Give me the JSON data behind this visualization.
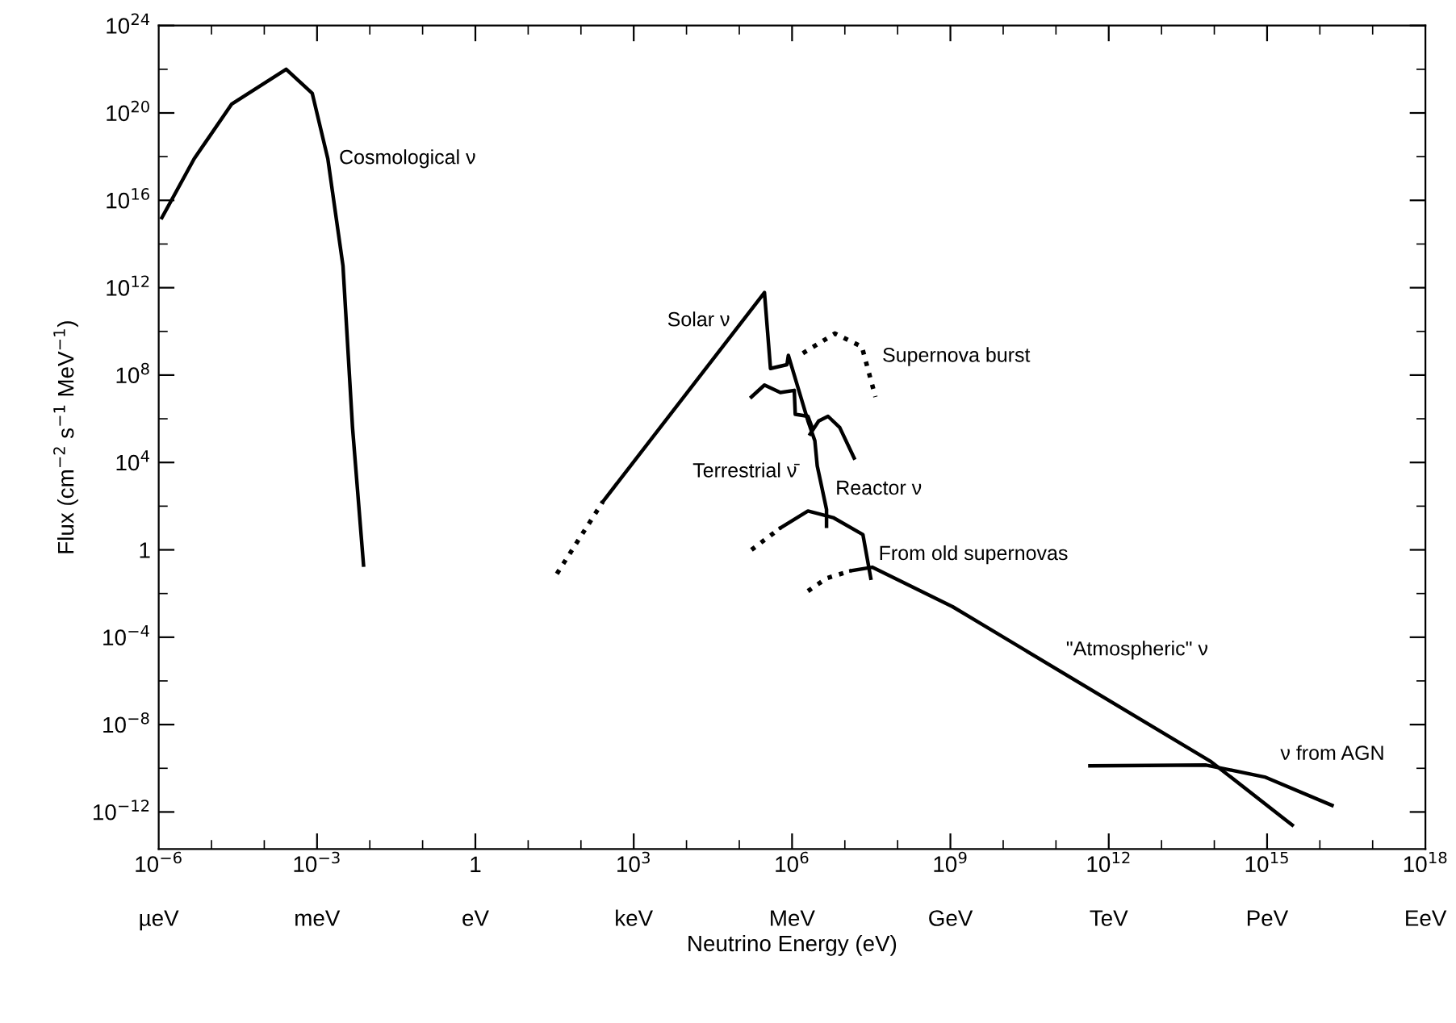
{
  "chart_data": {
    "type": "line",
    "xlabel": "Neutrino Energy (eV)",
    "ylabel": "Flux (cm$^{−2}$ s$^{−1}$ MeV$^{−1}$)",
    "log": "xy",
    "grid": false,
    "legend": false,
    "marker": "none",
    "xlim": [
      1e-06,
      1e+18
    ],
    "ylim": [
      2e-14,
      1e+24
    ],
    "xticks": [
      {
        "value": 1e-06,
        "label": "10$^{−6}$"
      },
      {
        "value": 0.001,
        "label": "10$^{−3}$"
      },
      {
        "value": 1,
        "label": "1"
      },
      {
        "value": 1000.0,
        "label": "10$^{3}$"
      },
      {
        "value": 1000000.0,
        "label": "10$^{6}$"
      },
      {
        "value": 1000000000.0,
        "label": "10$^{9}$"
      },
      {
        "value": 1000000000000.0,
        "label": "10$^{12}$"
      },
      {
        "value": 1000000000000000.0,
        "label": "10$^{15}$"
      },
      {
        "value": 1e+18,
        "label": "10$^{18}$"
      }
    ],
    "yticks": [
      {
        "value": 1e-12,
        "label": "10$^{−12}$"
      },
      {
        "value": 1e-08,
        "label": "10$^{−8}$"
      },
      {
        "value": 0.0001,
        "label": "10$^{−4}$"
      },
      {
        "value": 1,
        "label": "1"
      },
      {
        "value": 10000.0,
        "label": "10$^{4}$"
      },
      {
        "value": 100000000.0,
        "label": "10$^{8}$"
      },
      {
        "value": 1000000000000.0,
        "label": "10$^{12}$"
      },
      {
        "value": 1e+16,
        "label": "10$^{16}$"
      },
      {
        "value": 1e+20,
        "label": "10$^{20}$"
      },
      {
        "value": 1e+24,
        "label": "10$^{24}$"
      }
    ],
    "series": [
      {
        "color": "#000000",
        "line_style": "solid",
        "x": [
          1.15e-06,
          4.7e-06,
          2.4e-05,
          0.00026,
          0.00081,
          0.0016,
          0.0031,
          0.0047,
          0.0076
        ],
        "values": [
          1600000000000000.0,
          8e+17,
          2.5e+20,
          1e+22,
          8e+20,
          8e+17,
          10000000000000.0,
          400000.0,
          0.2
        ]
      },
      {
        "color": "#000000",
        "line_style": "dotted",
        "x": [
          35,
          260
        ],
        "values": [
          0.08,
          160
        ]
      },
      {
        "color": "#000000",
        "line_style": "solid",
        "x": [
          260,
          300000.0,
          390000.0,
          800000.0,
          850000.0,
          2000000.0,
          2700000.0,
          3000000.0,
          4500000.0,
          4500000.0
        ],
        "values": [
          160,
          600000000000.0,
          200000000.0,
          300000000.0,
          800000000.0,
          800000.0,
          100000.0,
          7000.0,
          70,
          12
        ]
      },
      {
        "color": "#000000",
        "line_style": "dotted",
        "x": [
          1600000.0,
          6500000.0,
          21000000.0,
          38000000.0
        ],
        "values": [
          1000000000.0,
          8000000000.0,
          2000000000.0,
          10000000.0
        ]
      },
      {
        "color": "#000000",
        "line_style": "solid",
        "x": [
          170000.0,
          300000.0,
          600000.0,
          1100000.0,
          1150000.0,
          2000000.0,
          2400000.0
        ],
        "values": [
          10000000.0,
          35000000.0,
          16000000.0,
          20000000.0,
          1600000.0,
          1300000.0,
          400000.0
        ]
      },
      {
        "color": "#000000",
        "line_style": "solid",
        "x": [
          2200000.0,
          3200000.0,
          4800000.0,
          8000000.0,
          15000000.0
        ],
        "values": [
          200000.0,
          800000.0,
          1300000.0,
          400000.0,
          16000.0
        ]
      },
      {
        "color": "#000000",
        "line_style": "dotted",
        "x": [
          170000.0,
          600000.0
        ],
        "values": [
          1,
          10
        ]
      },
      {
        "color": "#000000",
        "line_style": "solid",
        "x": [
          600000.0,
          2000000.0,
          6000000.0,
          22000000.0,
          31000000.0
        ],
        "values": [
          10,
          60,
          30,
          5,
          0.05
        ]
      },
      {
        "color": "#000000",
        "line_style": "dotted",
        "x": [
          2000000.0,
          4500000.0,
          13000000.0
        ],
        "values": [
          0.013,
          0.05,
          0.11
        ]
      },
      {
        "color": "#000000",
        "line_style": "solid",
        "x": [
          13000000.0,
          33000000.0,
          1100000000.0,
          87000000000000.0,
          3000000000000000.0
        ],
        "values": [
          0.11,
          0.16,
          0.0025,
          2e-10,
          2.5e-13
        ]
      },
      {
        "color": "#000000",
        "line_style": "solid",
        "x": [
          440000000000.0,
          70000000000000.0,
          900000000000000.0,
          1.7e+16
        ],
        "values": [
          1.3e-10,
          1.4e-10,
          4e-11,
          2e-12
        ]
      }
    ],
    "annotations": [
      {
        "text": "Cosmological ν",
        "x": 0.0016,
        "y": 8e+17
      },
      {
        "text": "Solar ν",
        "x": 120000.0,
        "y": 30000000000.0
      },
      {
        "text": "Supernova burst",
        "x": 38000000.0,
        "y": 10000000.0
      },
      {
        "text": "Terrestrial ν̄",
        "x": 2700000.0,
        "y": 100000.0
      },
      {
        "text": "Reactor ν",
        "x": 4500000.0,
        "y": 70
      },
      {
        "text": "From old supernovas",
        "x": 22000000.0,
        "y": 5
      },
      {
        "text": "\"Atmospheric\" ν",
        "x": 155000000000.0,
        "y": 1.9e-06
      },
      {
        "text": "ν from AGN",
        "x": 900000000000000.0,
        "y": 4e-11
      },
      "µeV",
      "meV",
      "eV",
      "keV",
      "MeV",
      "GeV",
      "TeV",
      "PeV",
      "EeV"
    ]
  }
}
